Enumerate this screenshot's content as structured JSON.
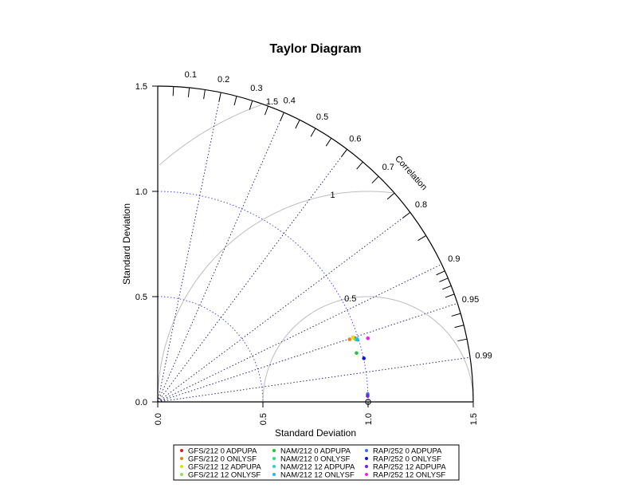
{
  "chart_data": {
    "type": "scatter",
    "subtype": "taylor-diagram",
    "title": "Taylor Diagram",
    "xlabel": "Standard Deviation",
    "ylabel": "Standard Deviation",
    "arc_label": "Correlation",
    "xlim": [
      0,
      1.5
    ],
    "ylim": [
      0,
      1.5
    ],
    "std_ticks": [
      "0.0",
      "0.5",
      "1.0",
      "1.5"
    ],
    "std_tick_values": [
      0,
      0.5,
      1.0,
      1.5
    ],
    "correlation_labels": [
      "0.1",
      "0.2",
      "0.3",
      "0.4",
      "0.5",
      "0.6",
      "0.7",
      "0.8",
      "0.9",
      "0.95",
      "0.99"
    ],
    "correlation_values": [
      0.1,
      0.2,
      0.3,
      0.4,
      0.5,
      0.6,
      0.7,
      0.8,
      0.9,
      0.95,
      0.99
    ],
    "correlation_lines": [
      0.2,
      0.4,
      0.6,
      0.8,
      0.9,
      0.95,
      0.99
    ],
    "rms_contour_labels": [
      "0.5",
      "1",
      "1.5"
    ],
    "rms_contour_values": [
      0.5,
      1.0,
      1.5
    ],
    "reference_std_arcs": [
      0.5,
      1.0
    ],
    "reference_point": {
      "x": 1.0,
      "y": 0.0
    },
    "legend_placement": "bottom",
    "series": [
      {
        "name": "GFS/212 0 ADPUPA",
        "color": "#e8171d",
        "x": 0.937,
        "y": 0.302
      },
      {
        "name": "GFS/212 0 ONLYSF",
        "color": "#f07e10",
        "x": 0.912,
        "y": 0.297
      },
      {
        "name": "GFS/212 12 ADPUPA",
        "color": "#e0e000",
        "x": 0.928,
        "y": 0.307
      },
      {
        "name": "GFS/212 12 ONLYSF",
        "color": "#8ae64a",
        "x": 0.941,
        "y": 0.296
      },
      {
        "name": "NAM/212 0 ADPUPA",
        "color": "#27c43c",
        "x": 0.945,
        "y": 0.232
      },
      {
        "name": "NAM/212 0 ONLYSF",
        "color": "#23e07e",
        "x": 0.948,
        "y": 0.298
      },
      {
        "name": "NAM/212 12 ADPUPA",
        "color": "#1fd6c4",
        "x": 0.946,
        "y": 0.3
      },
      {
        "name": "NAM/212 12 ONLYSF",
        "color": "#27b4f0",
        "x": 0.949,
        "y": 0.295
      },
      {
        "name": "RAP/252 0 ADPUPA",
        "color": "#3c6ef0",
        "x": 0.998,
        "y": 0.037
      },
      {
        "name": "RAP/252 0 ONLYSF",
        "color": "#0a14dc",
        "x": 0.98,
        "y": 0.207
      },
      {
        "name": "RAP/252 12 ADPUPA",
        "color": "#7a20e0",
        "x": 0.998,
        "y": 0.028
      },
      {
        "name": "RAP/252 12 ONLYSF",
        "color": "#f01ef0",
        "x": 0.999,
        "y": 0.302
      }
    ]
  }
}
